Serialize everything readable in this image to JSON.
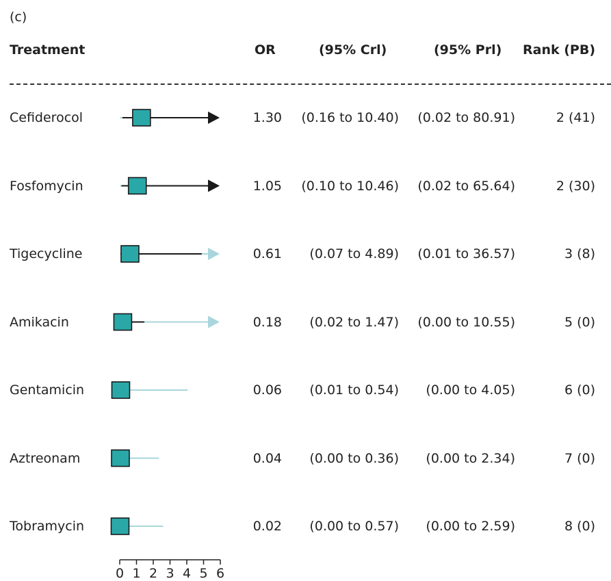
{
  "panel_label": "(c)",
  "columns": {
    "treatment": "Treatment",
    "or": "OR",
    "crl": "(95% Crl)",
    "prl": "(95% Prl)",
    "rank": "Rank (PB)"
  },
  "colors": {
    "marker_fill": "#2aa8a8",
    "marker_edge": "#1a1a1a",
    "ci_line": "#1a1a1a",
    "pi_line": "#a9d6dc"
  },
  "chart_data": {
    "type": "forest",
    "xlim": [
      0,
      6
    ],
    "x_ticks": [
      "0",
      "1",
      "2",
      "3",
      "4",
      "5",
      "6"
    ],
    "rows": [
      {
        "treatment": "Cefiderocol",
        "or": 1.3,
        "or_label": "1.30",
        "crl": [
          0.16,
          10.4
        ],
        "crl_label": "(0.16 to 10.40)",
        "prl": [
          0.02,
          80.91
        ],
        "prl_label": "(0.02 to 80.91)",
        "rank_label": "2 (41)"
      },
      {
        "treatment": "Fosfomycin",
        "or": 1.05,
        "or_label": "1.05",
        "crl": [
          0.1,
          10.46
        ],
        "crl_label": "(0.10 to 10.46)",
        "prl": [
          0.02,
          65.64
        ],
        "prl_label": "(0.02 to 65.64)",
        "rank_label": "2 (30)"
      },
      {
        "treatment": "Tigecycline",
        "or": 0.61,
        "or_label": "0.61",
        "crl": [
          0.07,
          4.89
        ],
        "crl_label": "(0.07 to 4.89)",
        "prl": [
          0.01,
          36.57
        ],
        "prl_label": "(0.01 to 36.57)",
        "rank_label": "3 (8)"
      },
      {
        "treatment": "Amikacin",
        "or": 0.18,
        "or_label": "0.18",
        "crl": [
          0.02,
          1.47
        ],
        "crl_label": "(0.02 to 1.47)",
        "prl": [
          0.0,
          10.55
        ],
        "prl_label": "(0.00 to 10.55)",
        "rank_label": "5 (0)"
      },
      {
        "treatment": "Gentamicin",
        "or": 0.06,
        "or_label": "0.06",
        "crl": [
          0.01,
          0.54
        ],
        "crl_label": "(0.01 to 0.54)",
        "prl": [
          0.0,
          4.05
        ],
        "prl_label": "(0.00 to 4.05)",
        "rank_label": "6 (0)"
      },
      {
        "treatment": "Aztreonam",
        "or": 0.04,
        "or_label": "0.04",
        "crl": [
          0.0,
          0.36
        ],
        "crl_label": "(0.00 to 0.36)",
        "prl": [
          0.0,
          2.34
        ],
        "prl_label": "(0.00 to 2.34)",
        "rank_label": "7 (0)"
      },
      {
        "treatment": "Tobramycin",
        "or": 0.02,
        "or_label": "0.02",
        "crl": [
          0.0,
          0.57
        ],
        "crl_label": "(0.00 to 0.57)",
        "prl": [
          0.0,
          2.59
        ],
        "prl_label": "(0.00 to 2.59)",
        "rank_label": "8 (0)"
      }
    ]
  }
}
